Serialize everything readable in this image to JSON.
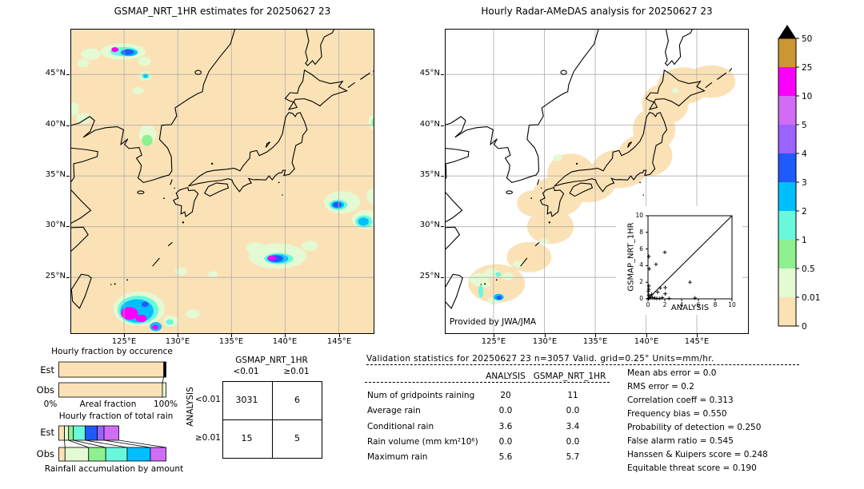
{
  "palette": {
    "tan": "#FBE2B6",
    "pale": "#E3FAD3",
    "green": "#8EF08E",
    "aqua": "#69F8DC",
    "cyan": "#00BFFF",
    "blue": "#1F5BFC",
    "purple": "#9A63FE",
    "violet": "#D16CF4",
    "magenta": "#FA00FA",
    "gold": "#CB9732",
    "black": "#000000",
    "grid": "#ADADAD",
    "ocean_left": "#FBE2B6",
    "ocean_right": "#FFFFFF"
  },
  "left_map": {
    "title": "GSMAP_NRT_1HR estimates for 20250627 23",
    "x_ticks": [
      "125°E",
      "130°E",
      "135°E",
      "140°E",
      "145°E"
    ],
    "y_ticks": [
      "45°N",
      "40°N",
      "35°N",
      "30°N",
      "25°N"
    ],
    "blobs": [
      [
        124.9,
        47.25,
        2.1,
        0.8,
        "pale"
      ],
      [
        121.9,
        47.0,
        0.9,
        0.55,
        "pale"
      ],
      [
        121.2,
        46.1,
        0.55,
        0.4,
        "pale"
      ],
      [
        126.9,
        46.3,
        0.6,
        0.45,
        "pale"
      ],
      [
        125.0,
        47.25,
        1.3,
        0.45,
        "aqua"
      ],
      [
        125.45,
        47.15,
        0.8,
        0.35,
        "cyan"
      ],
      [
        125.35,
        47.2,
        0.55,
        0.28,
        "blue"
      ],
      [
        124.15,
        47.45,
        0.33,
        0.24,
        "magenta"
      ],
      [
        126.95,
        44.85,
        0.6,
        0.45,
        "pale"
      ],
      [
        127.0,
        44.85,
        0.35,
        0.28,
        "aqua"
      ],
      [
        127.0,
        44.85,
        0.2,
        0.17,
        "cyan"
      ],
      [
        126.3,
        43.4,
        0.5,
        0.35,
        "pale"
      ],
      [
        121.2,
        40.7,
        0.65,
        0.5,
        "pale"
      ],
      [
        120.3,
        41.6,
        0.5,
        0.65,
        "pale"
      ],
      [
        127.2,
        39.1,
        0.8,
        0.95,
        "pale"
      ],
      [
        127.15,
        38.5,
        0.5,
        0.55,
        "green"
      ],
      [
        148.3,
        40.3,
        0.55,
        0.75,
        "pale"
      ],
      [
        148.4,
        40.3,
        0.35,
        0.5,
        "green"
      ],
      [
        139.3,
        27.1,
        2.7,
        1.25,
        "pale"
      ],
      [
        137.2,
        27.9,
        0.85,
        0.55,
        "pale"
      ],
      [
        142.3,
        28.1,
        0.75,
        0.5,
        "pale"
      ],
      [
        139.4,
        26.85,
        1.35,
        0.55,
        "aqua"
      ],
      [
        139.3,
        26.85,
        1.0,
        0.42,
        "cyan"
      ],
      [
        139.1,
        26.85,
        0.7,
        0.34,
        "blue"
      ],
      [
        138.75,
        26.9,
        0.4,
        0.22,
        "magenta"
      ],
      [
        145.3,
        32.4,
        1.7,
        1.1,
        "pale"
      ],
      [
        147.6,
        30.7,
        1.4,
        0.95,
        "pale"
      ],
      [
        148.4,
        33.0,
        0.8,
        0.85,
        "pale"
      ],
      [
        144.95,
        32.15,
        0.85,
        0.5,
        "aqua"
      ],
      [
        144.9,
        32.15,
        0.6,
        0.36,
        "cyan"
      ],
      [
        144.85,
        32.15,
        0.42,
        0.27,
        "blue"
      ],
      [
        147.35,
        30.5,
        0.8,
        0.6,
        "aqua"
      ],
      [
        147.3,
        30.5,
        0.5,
        0.4,
        "cyan"
      ],
      [
        126.4,
        21.9,
        2.4,
        1.7,
        "pale"
      ],
      [
        126.3,
        21.8,
        1.9,
        1.4,
        "aqua"
      ],
      [
        126.2,
        21.7,
        1.55,
        1.15,
        "cyan"
      ],
      [
        125.5,
        21.45,
        0.8,
        0.62,
        "magenta"
      ],
      [
        126.6,
        20.95,
        0.5,
        0.38,
        "magenta"
      ],
      [
        126.95,
        22.35,
        0.33,
        0.27,
        "blue"
      ],
      [
        127.95,
        20.15,
        0.55,
        0.45,
        "cyan"
      ],
      [
        127.9,
        20.1,
        0.28,
        0.22,
        "magenta"
      ],
      [
        129.35,
        20.7,
        0.75,
        0.55,
        "pale"
      ],
      [
        129.25,
        20.6,
        0.35,
        0.27,
        "aqua"
      ],
      [
        130.3,
        25.6,
        0.55,
        0.4,
        "pale"
      ],
      [
        133.3,
        25.3,
        0.45,
        0.33,
        "pale"
      ],
      [
        131.4,
        21.4,
        0.65,
        0.45,
        "pale"
      ]
    ]
  },
  "right_map": {
    "title": "Hourly Radar-AMeDAS analysis for 20250627 23",
    "x_ticks": [
      "125°E",
      "130°E",
      "135°E",
      "140°E",
      "145°E"
    ],
    "y_ticks": [
      "45°N",
      "40°N",
      "35°N",
      "30°N",
      "25°N"
    ],
    "credit": "Provided by JWA/JMA",
    "blobs": [
      [
        125.3,
        24.4,
        2.8,
        1.9,
        "tan"
      ],
      [
        128.5,
        27.0,
        2.2,
        1.5,
        "tan"
      ],
      [
        130.6,
        30.0,
        2.3,
        1.7,
        "tan"
      ],
      [
        131.3,
        33.0,
        2.5,
        2.0,
        "tan"
      ],
      [
        129.0,
        32.3,
        1.7,
        1.3,
        "tan"
      ],
      [
        132.6,
        35.3,
        2.3,
        1.9,
        "tan"
      ],
      [
        134.3,
        34.3,
        2.7,
        1.9,
        "tan"
      ],
      [
        137.4,
        35.7,
        2.7,
        1.9,
        "tan"
      ],
      [
        139.9,
        37.0,
        2.7,
        2.1,
        "tan"
      ],
      [
        140.8,
        39.6,
        2.1,
        2.1,
        "tan"
      ],
      [
        141.9,
        42.1,
        2.3,
        2.0,
        "tan"
      ],
      [
        143.7,
        43.9,
        2.6,
        1.8,
        "tan"
      ],
      [
        146.4,
        44.3,
        2.4,
        1.6,
        "tan"
      ],
      [
        131.3,
        36.8,
        0.45,
        0.35,
        "pale"
      ],
      [
        142.9,
        43.4,
        0.35,
        0.28,
        "pale"
      ],
      [
        130.0,
        28.6,
        0.4,
        0.3,
        "pale"
      ],
      [
        123.6,
        24.8,
        0.95,
        0.65,
        "pale"
      ],
      [
        124.8,
        25.4,
        0.7,
        0.5,
        "pale"
      ],
      [
        126.4,
        25.1,
        0.55,
        0.4,
        "pale"
      ],
      [
        127.4,
        26.3,
        0.5,
        0.35,
        "pale"
      ],
      [
        125.0,
        22.7,
        0.55,
        0.4,
        "pale"
      ],
      [
        124.3,
        24.3,
        0.4,
        0.3,
        "pale"
      ],
      [
        123.75,
        23.6,
        0.25,
        0.6,
        "aqua"
      ],
      [
        125.45,
        25.3,
        0.28,
        0.22,
        "aqua"
      ],
      [
        125.5,
        23.05,
        0.5,
        0.33,
        "cyan"
      ],
      [
        125.55,
        23.0,
        0.27,
        0.19,
        "blue"
      ]
    ]
  },
  "contingency": {
    "col_title": "GSMAP_NRT_1HR",
    "row_title": "ANALYSIS",
    "col_labels": [
      "<0.01",
      "≥0.01"
    ],
    "row_labels": [
      "<0.01",
      "≥0.01"
    ],
    "values": [
      [
        "3031",
        "6"
      ],
      [
        "15",
        "5"
      ]
    ]
  },
  "stats": {
    "header": "Validation statistics for 20250627 23  n=3057 Valid. grid=0.25° Units=mm/hr.",
    "columns": [
      "ANALYSIS",
      "GSMAP_NRT_1HR"
    ],
    "rows": [
      {
        "label": "Num of gridpoints raining",
        "analysis": "20",
        "gsmap": "11"
      },
      {
        "label": "Average rain",
        "analysis": "0.0",
        "gsmap": "0.0"
      },
      {
        "label": "Conditional rain",
        "analysis": "3.6",
        "gsmap": "3.4"
      },
      {
        "label": "Rain volume (mm km²10⁶)",
        "analysis": "0.0",
        "gsmap": "0.0"
      },
      {
        "label": "Maximum rain",
        "analysis": "5.6",
        "gsmap": "5.7"
      }
    ],
    "scores": [
      {
        "label": "Mean abs error",
        "value": "0.0"
      },
      {
        "label": "RMS error",
        "value": "0.2"
      },
      {
        "label": "Correlation coeff",
        "value": "0.313"
      },
      {
        "label": "Frequency bias",
        "value": "0.550"
      },
      {
        "label": "Probability of detection",
        "value": "0.250"
      },
      {
        "label": "False alarm ratio",
        "value": "0.545"
      },
      {
        "label": "Hanssen & Kuipers score",
        "value": "0.248"
      },
      {
        "label": "Equitable threat score",
        "value": "0.190"
      }
    ]
  },
  "chart_data": [
    {
      "type": "bar",
      "title": "Hourly fraction by occurence",
      "xlabel": "Areal fraction",
      "x_min_label": "0%",
      "x_max_label": "100%",
      "row_labels": [
        "Est",
        "Obs"
      ],
      "rows": [
        {
          "name": "Est",
          "segments": [
            [
              "tan",
              97.9
            ],
            [
              "black",
              2.1
            ]
          ]
        },
        {
          "name": "Obs",
          "segments": [
            [
              "tan",
              96.6
            ],
            [
              "pale",
              3.4
            ]
          ]
        }
      ],
      "connector_pairs": [
        [
          0,
          0
        ]
      ],
      "units": "percent of area"
    },
    {
      "type": "bar",
      "title": "Hourly fraction of total rain",
      "caption": "Rainfall accumulation by amount",
      "row_labels": [
        "Est",
        "Obs"
      ],
      "rows": [
        {
          "name": "Est",
          "segments": [
            [
              "tan",
              5.3
            ],
            [
              "pale",
              3.8
            ],
            [
              "green",
              4.5
            ],
            [
              "aqua",
              11.0
            ],
            [
              "blue",
              11.3
            ],
            [
              "purple",
              6.3
            ],
            [
              "violet",
              13.8
            ]
          ]
        },
        {
          "name": "Obs",
          "segments": [
            [
              "tan",
              5.8
            ],
            [
              "pale",
              22.0
            ],
            [
              "green",
              16.0
            ],
            [
              "aqua",
              20.0
            ],
            [
              "cyan",
              21.6
            ],
            [
              "violet",
              14.6
            ]
          ]
        }
      ],
      "connector_pairs": [
        [
          0,
          0
        ],
        [
          1,
          1
        ],
        [
          2,
          2
        ],
        [
          3,
          3
        ],
        [
          5,
          4
        ],
        [
          6,
          5
        ]
      ],
      "units": "percent of total rain"
    },
    {
      "type": "scatter",
      "xlabel": "ANALYSIS",
      "ylabel": "GSMAP_NRT_1HR",
      "xlim": [
        0,
        10
      ],
      "ylim": [
        0,
        10
      ],
      "x_tick_labels": [
        "0",
        "2",
        "4",
        "6",
        "8",
        "10"
      ],
      "y_tick_labels": [
        "0",
        "2",
        "4",
        "6",
        "8",
        "10"
      ],
      "diagonal": true,
      "points": [
        [
          0.1,
          5.1
        ],
        [
          2.0,
          5.6
        ],
        [
          0.95,
          4.15
        ],
        [
          0.15,
          3.6
        ],
        [
          5.0,
          2.0
        ],
        [
          0.1,
          1.55
        ],
        [
          1.45,
          1.3
        ],
        [
          2.05,
          1.35
        ],
        [
          1.15,
          0.8
        ],
        [
          2.05,
          0.6
        ],
        [
          0.1,
          1.15
        ],
        [
          0.3,
          0.3
        ],
        [
          0.55,
          0.15
        ],
        [
          0.8,
          0.1
        ],
        [
          1.05,
          0.05
        ],
        [
          1.35,
          0.05
        ],
        [
          2.5,
          0.05
        ],
        [
          5.6,
          0.1
        ],
        [
          0.05,
          0.05
        ],
        [
          0.2,
          0.1
        ],
        [
          0.1,
          0.45
        ],
        [
          0.45,
          0.55
        ],
        [
          0.05,
          0.9
        ],
        [
          1.7,
          0.15
        ]
      ]
    },
    {
      "type": "colorbar",
      "tick_labels": [
        "50",
        "25",
        "10",
        "5",
        "4",
        "3",
        "2",
        "1",
        "0.5",
        "0.01",
        "0"
      ],
      "colors_top_to_bottom": [
        "gold",
        "magenta",
        "violet",
        "purple",
        "blue",
        "cyan",
        "aqua",
        "green",
        "pale",
        "tan"
      ],
      "over_color": "black",
      "units": "mm/hr"
    }
  ]
}
